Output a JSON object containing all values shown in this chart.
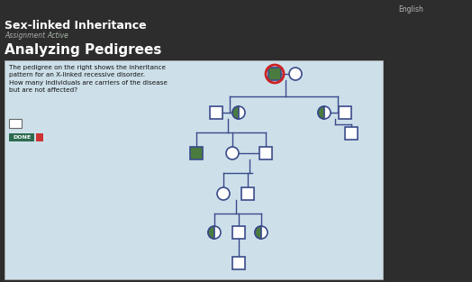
{
  "bg_dark": "#2d2d2d",
  "title": "Sex-linked Inheritance",
  "subtitle_label": "Assignment",
  "subtitle_value": "Active",
  "heading": "Analyzing Pedigrees",
  "body_text": "The pedigree on the right shows the inheritance\npattern for an X-linked recessive disorder.\nHow many individuals are carriers of the disease\nbut are not affected?",
  "done_label": "DONE",
  "green_fill": "#4a7c3f",
  "outline_color": "#3a4a8a",
  "red_circle": "#cc2222",
  "white_fill": "#ffffff",
  "panel_bg": "#cde0ea"
}
